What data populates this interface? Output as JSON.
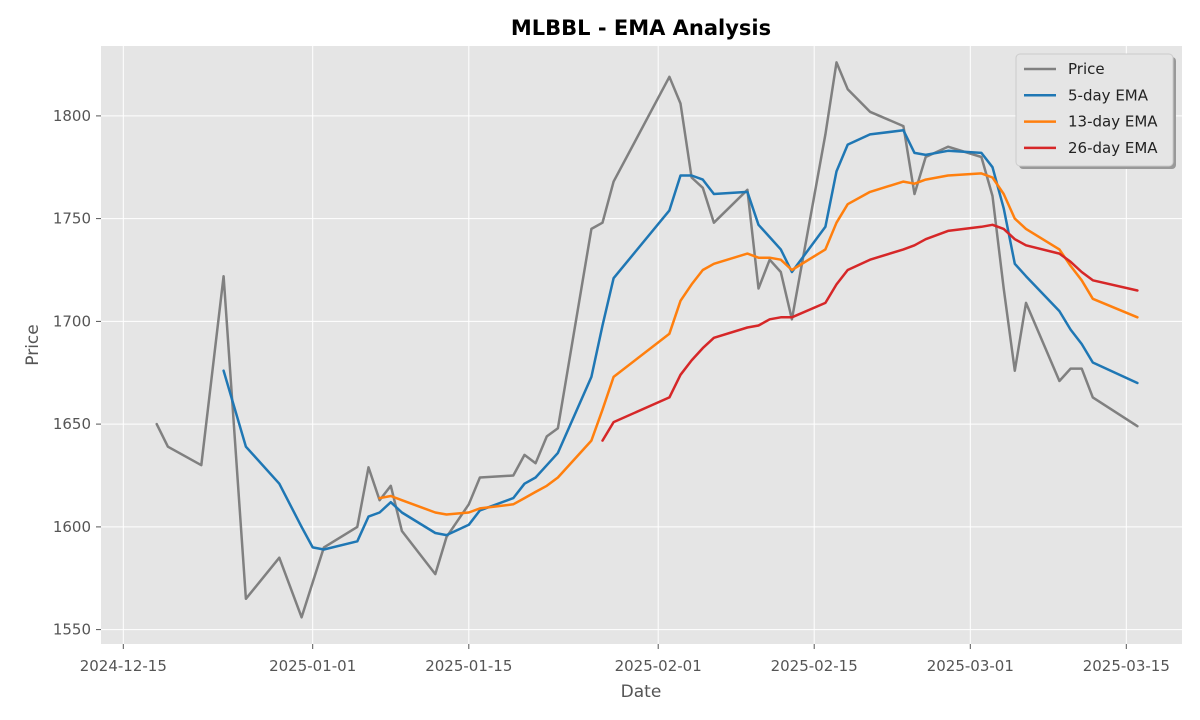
{
  "chart_data": {
    "type": "line",
    "title": "MLBBL - EMA Analysis",
    "xlabel": "Date",
    "ylabel": "Price",
    "x_ticks": [
      "2024-12-15",
      "2025-01-01",
      "2025-01-15",
      "2025-02-01",
      "2025-02-15",
      "2025-03-01",
      "2025-03-15"
    ],
    "y_ticks": [
      1550,
      1600,
      1650,
      1700,
      1750,
      1800
    ],
    "xlim": [
      "2024-12-13",
      "2025-03-20"
    ],
    "ylim": [
      1543,
      1834
    ],
    "grid": true,
    "legend_position": "top-right",
    "series": [
      {
        "name": "Price",
        "color": "#808080",
        "points": [
          [
            "2024-12-18",
            1650
          ],
          [
            "2024-12-19",
            1639
          ],
          [
            "2024-12-22",
            1630
          ],
          [
            "2024-12-24",
            1722
          ],
          [
            "2024-12-26",
            1565
          ],
          [
            "2024-12-29",
            1585
          ],
          [
            "2024-12-31",
            1556
          ],
          [
            "2025-01-01",
            1573
          ],
          [
            "2025-01-02",
            1590
          ],
          [
            "2025-01-05",
            1600
          ],
          [
            "2025-01-06",
            1629
          ],
          [
            "2025-01-07",
            1613
          ],
          [
            "2025-01-08",
            1620
          ],
          [
            "2025-01-09",
            1598
          ],
          [
            "2025-01-12",
            1577
          ],
          [
            "2025-01-13",
            1595
          ],
          [
            "2025-01-15",
            1611
          ],
          [
            "2025-01-16",
            1624
          ],
          [
            "2025-01-19",
            1625
          ],
          [
            "2025-01-20",
            1635
          ],
          [
            "2025-01-21",
            1631
          ],
          [
            "2025-01-22",
            1644
          ],
          [
            "2025-01-23",
            1648
          ],
          [
            "2025-01-26",
            1745
          ],
          [
            "2025-01-27",
            1748
          ],
          [
            "2025-01-28",
            1768
          ],
          [
            "2025-02-02",
            1819
          ],
          [
            "2025-02-03",
            1806
          ],
          [
            "2025-02-04",
            1770
          ],
          [
            "2025-02-05",
            1765
          ],
          [
            "2025-02-06",
            1748
          ],
          [
            "2025-02-09",
            1764
          ],
          [
            "2025-02-10",
            1716
          ],
          [
            "2025-02-11",
            1730
          ],
          [
            "2025-02-12",
            1724
          ],
          [
            "2025-02-13",
            1701
          ],
          [
            "2025-02-16",
            1791
          ],
          [
            "2025-02-17",
            1826
          ],
          [
            "2025-02-18",
            1813
          ],
          [
            "2025-02-20",
            1802
          ],
          [
            "2025-02-23",
            1795
          ],
          [
            "2025-02-24",
            1762
          ],
          [
            "2025-02-25",
            1780
          ],
          [
            "2025-02-27",
            1785
          ],
          [
            "2025-03-02",
            1780
          ],
          [
            "2025-03-03",
            1761
          ],
          [
            "2025-03-04",
            1716
          ],
          [
            "2025-03-05",
            1676
          ],
          [
            "2025-03-06",
            1709
          ],
          [
            "2025-03-09",
            1671
          ],
          [
            "2025-03-10",
            1677
          ],
          [
            "2025-03-11",
            1677
          ],
          [
            "2025-03-12",
            1663
          ],
          [
            "2025-03-16",
            1649
          ]
        ]
      },
      {
        "name": "5-day EMA",
        "color": "#1f77b4",
        "points": [
          [
            "2024-12-24",
            1676
          ],
          [
            "2024-12-26",
            1639
          ],
          [
            "2024-12-29",
            1621
          ],
          [
            "2024-12-31",
            1600
          ],
          [
            "2025-01-01",
            1590
          ],
          [
            "2025-01-02",
            1589
          ],
          [
            "2025-01-05",
            1593
          ],
          [
            "2025-01-06",
            1605
          ],
          [
            "2025-01-07",
            1607
          ],
          [
            "2025-01-08",
            1612
          ],
          [
            "2025-01-09",
            1607
          ],
          [
            "2025-01-12",
            1597
          ],
          [
            "2025-01-13",
            1596
          ],
          [
            "2025-01-15",
            1601
          ],
          [
            "2025-01-16",
            1608
          ],
          [
            "2025-01-19",
            1614
          ],
          [
            "2025-01-20",
            1621
          ],
          [
            "2025-01-21",
            1624
          ],
          [
            "2025-01-22",
            1630
          ],
          [
            "2025-01-23",
            1636
          ],
          [
            "2025-01-26",
            1673
          ],
          [
            "2025-01-27",
            1698
          ],
          [
            "2025-01-28",
            1721
          ],
          [
            "2025-02-02",
            1754
          ],
          [
            "2025-02-03",
            1771
          ],
          [
            "2025-02-04",
            1771
          ],
          [
            "2025-02-05",
            1769
          ],
          [
            "2025-02-06",
            1762
          ],
          [
            "2025-02-09",
            1763
          ],
          [
            "2025-02-10",
            1747
          ],
          [
            "2025-02-11",
            1741
          ],
          [
            "2025-02-12",
            1735
          ],
          [
            "2025-02-13",
            1724
          ],
          [
            "2025-02-16",
            1746
          ],
          [
            "2025-02-17",
            1773
          ],
          [
            "2025-02-18",
            1786
          ],
          [
            "2025-02-20",
            1791
          ],
          [
            "2025-02-23",
            1793
          ],
          [
            "2025-02-24",
            1782
          ],
          [
            "2025-02-25",
            1781
          ],
          [
            "2025-02-27",
            1783
          ],
          [
            "2025-03-02",
            1782
          ],
          [
            "2025-03-03",
            1775
          ],
          [
            "2025-03-04",
            1755
          ],
          [
            "2025-03-05",
            1728
          ],
          [
            "2025-03-06",
            1722
          ],
          [
            "2025-03-09",
            1705
          ],
          [
            "2025-03-10",
            1696
          ],
          [
            "2025-03-11",
            1689
          ],
          [
            "2025-03-12",
            1680
          ],
          [
            "2025-03-16",
            1670
          ]
        ]
      },
      {
        "name": "13-day EMA",
        "color": "#ff7f0e",
        "points": [
          [
            "2025-01-07",
            1614
          ],
          [
            "2025-01-08",
            1615
          ],
          [
            "2025-01-09",
            1613
          ],
          [
            "2025-01-12",
            1607
          ],
          [
            "2025-01-13",
            1606
          ],
          [
            "2025-01-15",
            1607
          ],
          [
            "2025-01-16",
            1609
          ],
          [
            "2025-01-19",
            1611
          ],
          [
            "2025-01-20",
            1614
          ],
          [
            "2025-01-21",
            1617
          ],
          [
            "2025-01-22",
            1620
          ],
          [
            "2025-01-23",
            1624
          ],
          [
            "2025-01-26",
            1642
          ],
          [
            "2025-01-27",
            1657
          ],
          [
            "2025-01-28",
            1673
          ],
          [
            "2025-02-02",
            1694
          ],
          [
            "2025-02-03",
            1710
          ],
          [
            "2025-02-04",
            1718
          ],
          [
            "2025-02-05",
            1725
          ],
          [
            "2025-02-06",
            1728
          ],
          [
            "2025-02-09",
            1733
          ],
          [
            "2025-02-10",
            1731
          ],
          [
            "2025-02-11",
            1731
          ],
          [
            "2025-02-12",
            1730
          ],
          [
            "2025-02-13",
            1725
          ],
          [
            "2025-02-16",
            1735
          ],
          [
            "2025-02-17",
            1748
          ],
          [
            "2025-02-18",
            1757
          ],
          [
            "2025-02-20",
            1763
          ],
          [
            "2025-02-23",
            1768
          ],
          [
            "2025-02-24",
            1767
          ],
          [
            "2025-02-25",
            1769
          ],
          [
            "2025-02-27",
            1771
          ],
          [
            "2025-03-02",
            1772
          ],
          [
            "2025-03-03",
            1770
          ],
          [
            "2025-03-04",
            1762
          ],
          [
            "2025-03-05",
            1750
          ],
          [
            "2025-03-06",
            1745
          ],
          [
            "2025-03-09",
            1735
          ],
          [
            "2025-03-10",
            1727
          ],
          [
            "2025-03-11",
            1720
          ],
          [
            "2025-03-12",
            1711
          ],
          [
            "2025-03-16",
            1702
          ]
        ]
      },
      {
        "name": "26-day EMA",
        "color": "#d62728",
        "points": [
          [
            "2025-01-27",
            1642
          ],
          [
            "2025-01-28",
            1651
          ],
          [
            "2025-02-02",
            1663
          ],
          [
            "2025-02-03",
            1674
          ],
          [
            "2025-02-04",
            1681
          ],
          [
            "2025-02-05",
            1687
          ],
          [
            "2025-02-06",
            1692
          ],
          [
            "2025-02-09",
            1697
          ],
          [
            "2025-02-10",
            1698
          ],
          [
            "2025-02-11",
            1701
          ],
          [
            "2025-02-12",
            1702
          ],
          [
            "2025-02-13",
            1702
          ],
          [
            "2025-02-16",
            1709
          ],
          [
            "2025-02-17",
            1718
          ],
          [
            "2025-02-18",
            1725
          ],
          [
            "2025-02-20",
            1730
          ],
          [
            "2025-02-23",
            1735
          ],
          [
            "2025-02-24",
            1737
          ],
          [
            "2025-02-25",
            1740
          ],
          [
            "2025-02-27",
            1744
          ],
          [
            "2025-03-02",
            1746
          ],
          [
            "2025-03-03",
            1747
          ],
          [
            "2025-03-04",
            1745
          ],
          [
            "2025-03-05",
            1740
          ],
          [
            "2025-03-06",
            1737
          ],
          [
            "2025-03-09",
            1733
          ],
          [
            "2025-03-10",
            1729
          ],
          [
            "2025-03-11",
            1724
          ],
          [
            "2025-03-12",
            1720
          ],
          [
            "2025-03-16",
            1715
          ]
        ]
      }
    ]
  }
}
